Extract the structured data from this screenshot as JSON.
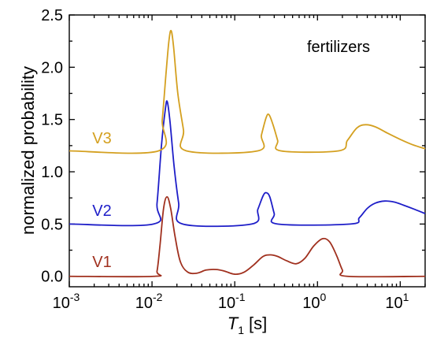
{
  "chart_data": {
    "type": "line",
    "title": "",
    "annotation": "fertilizers",
    "xlabel": {
      "symbol": "T",
      "subscript": "1",
      "unit": "[s]"
    },
    "ylabel": "normalized probability",
    "x_scale": "log",
    "xlim": [
      0.001,
      20
    ],
    "ylim": [
      -0.1,
      2.5
    ],
    "x_ticks": [
      {
        "value": 0.001,
        "base": "10",
        "exp": "-3"
      },
      {
        "value": 0.01,
        "base": "10",
        "exp": "-2"
      },
      {
        "value": 0.1,
        "base": "10",
        "exp": "-1"
      },
      {
        "value": 1,
        "base": "10",
        "exp": "0"
      },
      {
        "value": 10,
        "base": "10",
        "exp": "1"
      }
    ],
    "y_ticks": [
      {
        "value": 0.0,
        "label": "0.0"
      },
      {
        "value": 0.5,
        "label": "0.5"
      },
      {
        "value": 1.0,
        "label": "1.0"
      },
      {
        "value": 1.5,
        "label": "1.5"
      },
      {
        "value": 2.0,
        "label": "2.0"
      },
      {
        "value": 2.5,
        "label": "2.5"
      }
    ],
    "grid": false,
    "legend": "inline labels at left of each curve",
    "series": [
      {
        "name": "V1",
        "color": "#a0301e",
        "label_pos": {
          "x": 0.0019,
          "y": 0.09
        },
        "points": [
          [
            0.001,
            0
          ],
          [
            0.0105,
            0
          ],
          [
            0.0115,
            0.05
          ],
          [
            0.0125,
            0.3
          ],
          [
            0.0138,
            0.65
          ],
          [
            0.0152,
            0.76
          ],
          [
            0.0168,
            0.65
          ],
          [
            0.019,
            0.38
          ],
          [
            0.022,
            0.14
          ],
          [
            0.027,
            0.04
          ],
          [
            0.035,
            0.03
          ],
          [
            0.045,
            0.06
          ],
          [
            0.06,
            0.065
          ],
          [
            0.075,
            0.05
          ],
          [
            0.1,
            0.02
          ],
          [
            0.13,
            0.04
          ],
          [
            0.17,
            0.11
          ],
          [
            0.22,
            0.19
          ],
          [
            0.27,
            0.205
          ],
          [
            0.33,
            0.19
          ],
          [
            0.42,
            0.15
          ],
          [
            0.55,
            0.12
          ],
          [
            0.7,
            0.17
          ],
          [
            0.9,
            0.29
          ],
          [
            1.15,
            0.36
          ],
          [
            1.4,
            0.33
          ],
          [
            1.7,
            0.2
          ],
          [
            2.0,
            0.06
          ],
          [
            2.3,
            0
          ],
          [
            20,
            0
          ]
        ]
      },
      {
        "name": "V2",
        "color": "#1e1ec8",
        "label_pos": {
          "x": 0.0019,
          "y": 0.58
        },
        "points": [
          [
            0.001,
            0.5
          ],
          [
            0.0104,
            0.5
          ],
          [
            0.0115,
            0.7
          ],
          [
            0.013,
            1.25
          ],
          [
            0.0145,
            1.6
          ],
          [
            0.0153,
            1.67
          ],
          [
            0.0165,
            1.48
          ],
          [
            0.0185,
            1.05
          ],
          [
            0.021,
            0.7
          ],
          [
            0.0235,
            0.5
          ],
          [
            0.16,
            0.5
          ],
          [
            0.19,
            0.64
          ],
          [
            0.22,
            0.77
          ],
          [
            0.24,
            0.8
          ],
          [
            0.265,
            0.76
          ],
          [
            0.3,
            0.6
          ],
          [
            0.33,
            0.5
          ],
          [
            2.5,
            0.5
          ],
          [
            3.2,
            0.56
          ],
          [
            4.0,
            0.65
          ],
          [
            5.0,
            0.7
          ],
          [
            6.5,
            0.72
          ],
          [
            8.5,
            0.71
          ],
          [
            11,
            0.68
          ],
          [
            15,
            0.64
          ],
          [
            20,
            0.6
          ]
        ]
      },
      {
        "name": "V3",
        "color": "#d4a020",
        "label_pos": {
          "x": 0.0019,
          "y": 1.27
        },
        "points": [
          [
            0.001,
            1.2
          ],
          [
            0.012,
            1.2
          ],
          [
            0.0133,
            1.5
          ],
          [
            0.0148,
            1.95
          ],
          [
            0.016,
            2.25
          ],
          [
            0.017,
            2.35
          ],
          [
            0.0182,
            2.2
          ],
          [
            0.0205,
            1.75
          ],
          [
            0.024,
            1.4
          ],
          [
            0.026,
            1.2
          ],
          [
            0.19,
            1.2
          ],
          [
            0.21,
            1.35
          ],
          [
            0.24,
            1.52
          ],
          [
            0.26,
            1.545
          ],
          [
            0.29,
            1.45
          ],
          [
            0.33,
            1.3
          ],
          [
            0.36,
            1.2
          ],
          [
            1.8,
            1.2
          ],
          [
            2.3,
            1.3
          ],
          [
            3.0,
            1.42
          ],
          [
            3.8,
            1.45
          ],
          [
            5,
            1.43
          ],
          [
            7,
            1.37
          ],
          [
            10,
            1.31
          ],
          [
            14,
            1.26
          ],
          [
            20,
            1.22
          ]
        ]
      }
    ]
  }
}
